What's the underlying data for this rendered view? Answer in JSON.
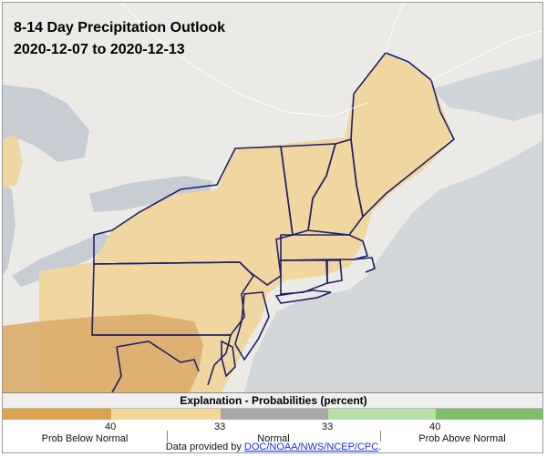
{
  "title": "8-14 Day Precipitation Outlook",
  "date_range": "2020-12-07 to 2020-12-13",
  "legend": {
    "heading": "Explanation - Probabilities (percent)",
    "below": {
      "value": "40",
      "label": "Prob Below Normal"
    },
    "normal": {
      "left_value": "33",
      "right_value": "33",
      "label": "Normal"
    },
    "above": {
      "value": "40",
      "label": "Prob Above Normal"
    },
    "colors": {
      "below_strong": "#d9a44d",
      "below_weak": "#f1d79b",
      "normal": "#a8a8a8",
      "above_weak": "#b7dfa6",
      "above_strong": "#7fbf6b"
    }
  },
  "credit": {
    "prefix": "Data provided by ",
    "link_text": "DOC/NOAA/NWS/NCEP/CPC",
    "suffix": "."
  },
  "map_colors": {
    "land": "#eceae6",
    "water": "#c7cdd3",
    "ocean": "#d3d7da",
    "below_33": "#f0d7a0",
    "below_40": "#dcad6b",
    "border": "#1f1f6e"
  }
}
